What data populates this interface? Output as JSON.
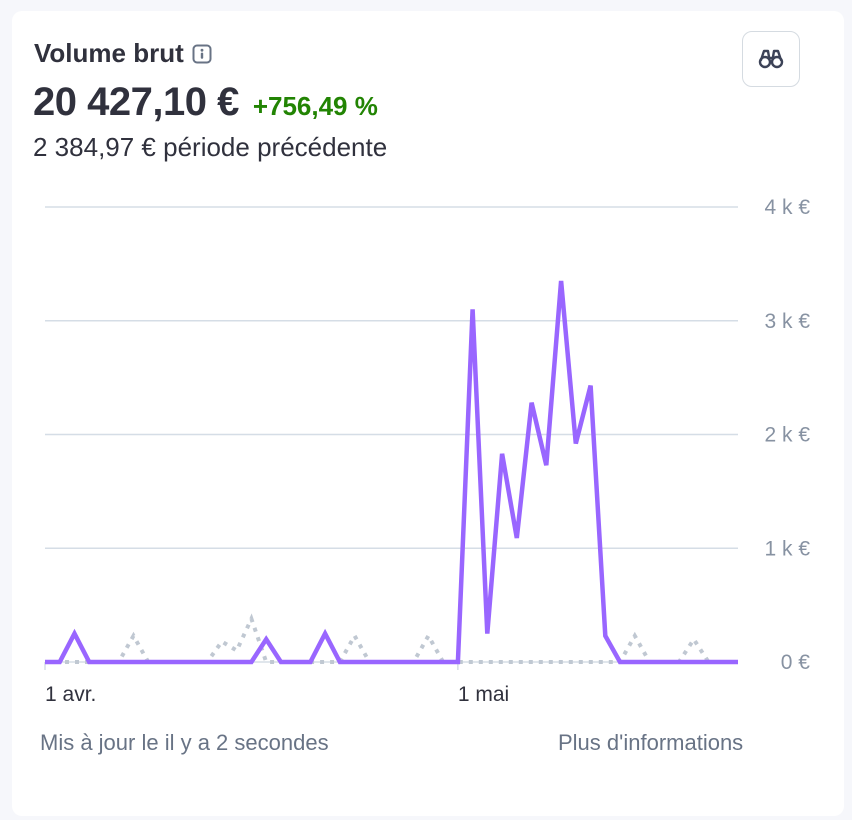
{
  "header": {
    "title": "Volume brut",
    "info_icon": "info-icon",
    "action_icon": "binoculars-icon"
  },
  "summary": {
    "value": "20 427,10 €",
    "delta": "+756,49 %",
    "previous": "2 384,97 € période précédente"
  },
  "footer": {
    "updated": "Mis à jour le il y a 2 secondes",
    "more": "Plus d'informations"
  },
  "colors": {
    "current": "#9966ff",
    "previous": "#c0c8d2",
    "delta": "#228403",
    "grid": "#d5dde6"
  },
  "chart_data": {
    "type": "line",
    "xlabel": "",
    "ylabel": "",
    "ylim": [
      0,
      4000
    ],
    "yticks": [
      {
        "value": 0,
        "label": "0 €"
      },
      {
        "value": 1000,
        "label": "1 k €"
      },
      {
        "value": 2000,
        "label": "2 k €"
      },
      {
        "value": 3000,
        "label": "3 k €"
      },
      {
        "value": 4000,
        "label": "4 k €"
      }
    ],
    "xticks": [
      {
        "day": 1,
        "label": "1 avr."
      },
      {
        "day": 29,
        "label": "1 mai"
      }
    ],
    "grid": true,
    "series": [
      {
        "style": "solid",
        "x": [
          1,
          2,
          3,
          4,
          5,
          6,
          7,
          8,
          9,
          10,
          11,
          12,
          13,
          14,
          15,
          16,
          17,
          18,
          19,
          20,
          21,
          22,
          23,
          24,
          25,
          26,
          27,
          28,
          29,
          30,
          31,
          32,
          33,
          34,
          35,
          36,
          37,
          38,
          39,
          40,
          41,
          42,
          43,
          44,
          45,
          46,
          47,
          48
        ],
        "values": [
          0,
          0,
          250,
          0,
          0,
          0,
          0,
          0,
          0,
          0,
          0,
          0,
          0,
          0,
          0,
          200,
          0,
          0,
          0,
          250,
          0,
          0,
          0,
          0,
          0,
          0,
          0,
          0,
          0,
          3100,
          250,
          1830,
          1090,
          2280,
          1730,
          3350,
          1920,
          2430,
          230,
          0,
          0,
          0,
          0,
          0,
          0,
          0,
          0,
          0
        ]
      },
      {
        "style": "dotted",
        "x": [
          1,
          2,
          3,
          4,
          5,
          6,
          7,
          8,
          9,
          10,
          11,
          12,
          13,
          14,
          15,
          16,
          17,
          18,
          19,
          20,
          21,
          22,
          23,
          24,
          25,
          26,
          27,
          28,
          29,
          30,
          31,
          32,
          33,
          34,
          35,
          36,
          37,
          38,
          39,
          40,
          41,
          42,
          43,
          44,
          45,
          46,
          47,
          48
        ],
        "values": [
          0,
          0,
          0,
          0,
          0,
          0,
          230,
          0,
          0,
          0,
          0,
          0,
          180,
          100,
          380,
          0,
          0,
          0,
          0,
          0,
          0,
          230,
          0,
          0,
          0,
          0,
          230,
          0,
          0,
          0,
          0,
          0,
          0,
          0,
          0,
          0,
          0,
          0,
          0,
          0,
          230,
          0,
          0,
          0,
          200,
          0,
          0,
          0
        ]
      }
    ]
  }
}
